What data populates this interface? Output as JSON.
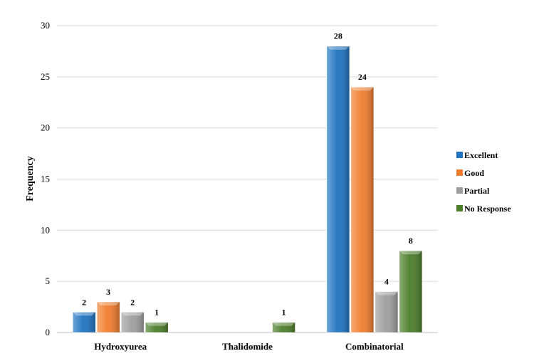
{
  "chart_data": {
    "type": "bar",
    "categories": [
      "Hydroxyurea",
      "Thalidomide",
      "Combinatorial"
    ],
    "series": [
      {
        "name": "Excellent",
        "values": [
          2,
          0,
          28
        ],
        "color": "#1f73c0"
      },
      {
        "name": "Good",
        "values": [
          3,
          0,
          24
        ],
        "color": "#f07d2d"
      },
      {
        "name": "Partial",
        "values": [
          2,
          0,
          4
        ],
        "color": "#9e9e9e"
      },
      {
        "name": "No Response",
        "values": [
          1,
          1,
          8
        ],
        "color": "#4b7d2a"
      }
    ],
    "title": "",
    "xlabel": "",
    "ylabel": "Frequency",
    "ylim": [
      0,
      30
    ],
    "yticks": [
      0,
      5,
      10,
      15,
      20,
      25,
      30
    ],
    "grid": true,
    "legend": "right"
  }
}
